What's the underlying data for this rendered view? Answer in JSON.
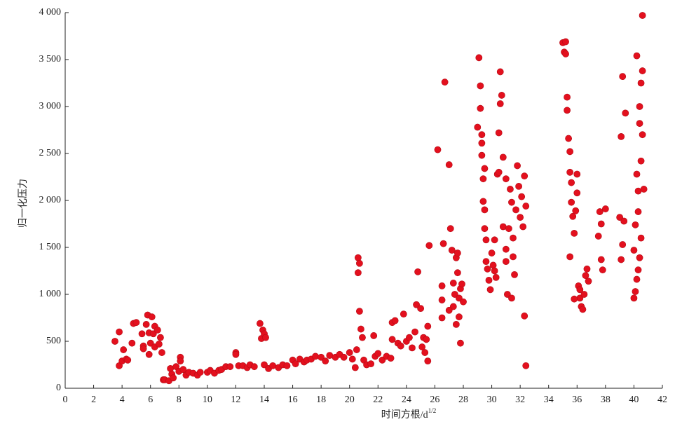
{
  "chart_data": {
    "type": "scatter",
    "x_label": "时间方根/d",
    "x_label_sup": "1/2",
    "y_label": "归一化压力",
    "color": "#e3101e",
    "xlim": [
      0,
      42
    ],
    "xticks": [
      0,
      2,
      4,
      6,
      8,
      10,
      12,
      14,
      16,
      18,
      20,
      22,
      24,
      26,
      28,
      30,
      32,
      34,
      36,
      38,
      40,
      42
    ],
    "ylim": [
      0,
      4000
    ],
    "yticks": [
      0,
      500,
      {
        "value": 1000,
        "label": "1 000"
      },
      {
        "value": 1500,
        "label": "1 500"
      },
      {
        "value": 2000,
        "label": "2 000"
      },
      {
        "value": 2500,
        "label": "2 500"
      },
      {
        "value": 3000,
        "label": "3 000"
      },
      {
        "value": 3500,
        "label": "3 500"
      },
      {
        "value": 4000,
        "label": "4 000"
      }
    ],
    "x": [
      3.5,
      3.8,
      3.8,
      4,
      4.1,
      4.3,
      4.4,
      4.7,
      4.8,
      5,
      5.4,
      5.5,
      5.5,
      5.7,
      5.8,
      5.9,
      5.9,
      6,
      6.1,
      6.2,
      6.3,
      6.3,
      6.5,
      6.6,
      6.7,
      6.8,
      6.9,
      7,
      7.3,
      7.4,
      7.5,
      7.6,
      7.8,
      8,
      8.1,
      8.1,
      8.3,
      8.5,
      8.7,
      9,
      9.3,
      9.5,
      10,
      10.2,
      10.5,
      10.8,
      11,
      11.3,
      11.6,
      12,
      12,
      12.2,
      12.5,
      12.8,
      13,
      13.3,
      13.7,
      13.8,
      13.9,
      14,
      14.1,
      14,
      14.3,
      14.6,
      15,
      15.3,
      15.6,
      16,
      16.2,
      16.5,
      16.8,
      17,
      17.3,
      17.6,
      18,
      18.3,
      18.6,
      19,
      19.3,
      19.6,
      20,
      20.2,
      20.4,
      20.5,
      20.6,
      20.6,
      20.7,
      20.7,
      20.8,
      20.9,
      21,
      21.2,
      21.5,
      21.7,
      21.8,
      22,
      22.3,
      22.6,
      22.9,
      23,
      23,
      23.2,
      23.4,
      23.6,
      23.8,
      24,
      24.2,
      24.4,
      24.6,
      24.7,
      24.8,
      25,
      25.1,
      25.2,
      25.3,
      25.4,
      25.5,
      25.5,
      25.6,
      26.2,
      26.5,
      26.5,
      26.6,
      26.7,
      27,
      27.1,
      27.2,
      27.3,
      27.3,
      27.4,
      27.5,
      27.5,
      27.6,
      27.7,
      27.7,
      27.8,
      27.8,
      27.9,
      28,
      26.5,
      27,
      27.6,
      29,
      29.1,
      29.2,
      29.2,
      29.3,
      29.3,
      29.4,
      29.4,
      29.5,
      29.5,
      29.6,
      29.6,
      29.7,
      29.8,
      29.9,
      30,
      30.1,
      30.2,
      30.3,
      30.4,
      30.5,
      30.5,
      30.6,
      30.7,
      30.6,
      30.8,
      30.8,
      31,
      31,
      31,
      31.1,
      29.3,
      29.5,
      30.2,
      31.2,
      31.3,
      31.4,
      31.5,
      31.5,
      31.6,
      31.7,
      31.8,
      31.9,
      32,
      32.1,
      32.2,
      32.3,
      32.3,
      32.4,
      32.4,
      31.4,
      35,
      35.1,
      35.2,
      35.2,
      35.3,
      35.3,
      35.4,
      35.5,
      35.5,
      35.6,
      35.6,
      35.7,
      35.8,
      35.5,
      35.9,
      36,
      36,
      36.1,
      36.2,
      36.3,
      36.4,
      36.5,
      36.6,
      36.7,
      36.8,
      35.8,
      36.2,
      37.5,
      37.6,
      37.7,
      37.7,
      37.8,
      38,
      39,
      39.1,
      39.2,
      39.3,
      39.2,
      39.4,
      39.1,
      40,
      40,
      40.1,
      40.1,
      40.2,
      40.2,
      40.3,
      40.3,
      40.3,
      40.4,
      40.4,
      40.5,
      40.5,
      40.5,
      40.6,
      40.6,
      40.6,
      40.7,
      40.2,
      40.4
    ],
    "values": [
      500,
      240,
      600,
      290,
      410,
      310,
      300,
      480,
      690,
      700,
      580,
      450,
      420,
      680,
      780,
      360,
      590,
      480,
      760,
      580,
      440,
      660,
      620,
      470,
      540,
      380,
      90,
      90,
      80,
      210,
      150,
      110,
      230,
      180,
      330,
      290,
      200,
      140,
      170,
      160,
      140,
      170,
      170,
      190,
      160,
      190,
      200,
      230,
      230,
      380,
      360,
      240,
      240,
      220,
      250,
      230,
      690,
      530,
      620,
      580,
      540,
      250,
      210,
      240,
      220,
      250,
      240,
      300,
      260,
      310,
      280,
      300,
      310,
      340,
      330,
      290,
      350,
      330,
      360,
      330,
      380,
      310,
      220,
      410,
      1390,
      1230,
      1330,
      820,
      630,
      540,
      300,
      250,
      260,
      560,
      340,
      370,
      300,
      340,
      320,
      520,
      700,
      720,
      480,
      450,
      790,
      500,
      540,
      430,
      600,
      890,
      1240,
      850,
      440,
      540,
      380,
      520,
      290,
      660,
      1520,
      2540,
      940,
      1090,
      1540,
      3260,
      2380,
      1700,
      1470,
      1120,
      870,
      1000,
      1390,
      680,
      1230,
      960,
      760,
      1060,
      480,
      1110,
      920,
      750,
      830,
      1440,
      2780,
      3520,
      3220,
      2980,
      2700,
      2480,
      2230,
      1990,
      1900,
      1700,
      1580,
      1350,
      1270,
      1150,
      1050,
      1440,
      1310,
      1580,
      1180,
      2280,
      2300,
      2720,
      3370,
      3120,
      3030,
      2460,
      1720,
      2230,
      1480,
      1350,
      1000,
      2610,
      2340,
      1250,
      1700,
      2120,
      1980,
      1600,
      1400,
      1210,
      1900,
      2370,
      2150,
      1820,
      2040,
      1720,
      2260,
      770,
      240,
      1940,
      960,
      3680,
      3580,
      3690,
      3560,
      3100,
      2960,
      2660,
      2520,
      2300,
      2190,
      1980,
      1830,
      1650,
      1400,
      1890,
      2280,
      2080,
      1090,
      960,
      870,
      840,
      1000,
      1200,
      1270,
      1140,
      950,
      1050,
      1620,
      1880,
      1750,
      1370,
      1260,
      1910,
      1820,
      1370,
      1530,
      1780,
      3320,
      2930,
      2680,
      1470,
      960,
      1030,
      1740,
      2280,
      3540,
      1880,
      2100,
      1260,
      3000,
      2820,
      2420,
      3250,
      1600,
      3970,
      3380,
      2700,
      2120,
      1160,
      1390
    ]
  }
}
